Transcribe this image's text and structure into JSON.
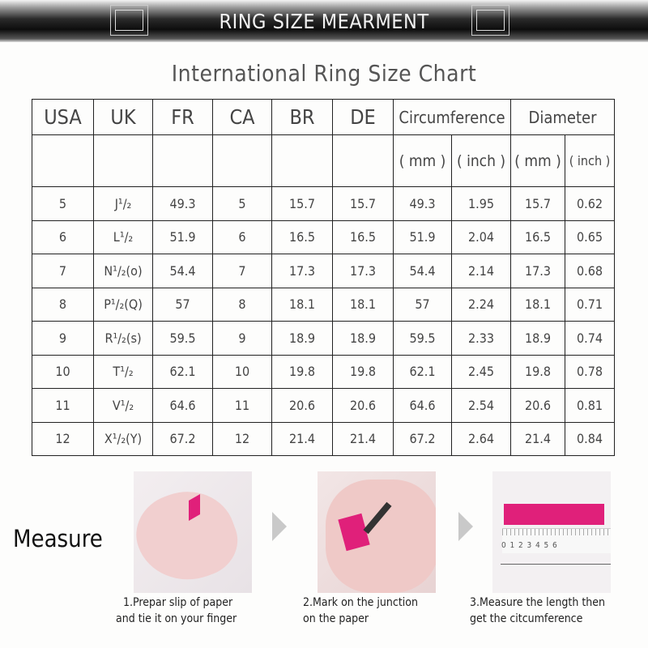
{
  "banner": {
    "title": "RING SIZE MEARMENT"
  },
  "chart_title": "International Ring Size Chart",
  "table": {
    "headers": [
      "USA",
      "UK",
      "FR",
      "CA",
      "BR",
      "DE",
      "Circumference",
      "Diameter"
    ],
    "units": [
      "( mm )",
      "( inch )",
      "( mm )",
      "( inch )"
    ],
    "rows": [
      [
        "5",
        "J¹/₂",
        "49.3",
        "5",
        "15.7",
        "15.7",
        "49.3",
        "1.95",
        "15.7",
        "0.62"
      ],
      [
        "6",
        "L¹/₂",
        "51.9",
        "6",
        "16.5",
        "16.5",
        "51.9",
        "2.04",
        "16.5",
        "0.65"
      ],
      [
        "7",
        "N¹/₂(o)",
        "54.4",
        "7",
        "17.3",
        "17.3",
        "54.4",
        "2.14",
        "17.3",
        "0.68"
      ],
      [
        "8",
        "P¹/₂(Q)",
        "57",
        "8",
        "18.1",
        "18.1",
        "57",
        "2.24",
        "18.1",
        "0.71"
      ],
      [
        "9",
        "R¹/₂(s)",
        "59.5",
        "9",
        "18.9",
        "18.9",
        "59.5",
        "2.33",
        "18.9",
        "0.74"
      ],
      [
        "10",
        "T¹/₂",
        "62.1",
        "10",
        "19.8",
        "19.8",
        "62.1",
        "2.45",
        "19.8",
        "0.78"
      ],
      [
        "11",
        "V¹/₂",
        "64.6",
        "11",
        "20.6",
        "20.6",
        "64.6",
        "2.54",
        "20.6",
        "0.81"
      ],
      [
        "12",
        "X¹/₂(Y)",
        "67.2",
        "12",
        "21.4",
        "21.4",
        "67.2",
        "2.64",
        "21.4",
        "0.84"
      ]
    ]
  },
  "measure": {
    "label": "Measure",
    "steps": [
      {
        "line1": "1.Prepar slip of paper",
        "line2": "and tie it on your finger"
      },
      {
        "line1": "2.Mark on the junction",
        "line2": "on the paper"
      },
      {
        "line1": "3.Measure the length then",
        "line2": "get the citcumference"
      }
    ],
    "ruler_ticks": [
      "0",
      "1",
      "2",
      "3",
      "4",
      "5",
      "6"
    ],
    "accent_color": "#e0207a"
  }
}
